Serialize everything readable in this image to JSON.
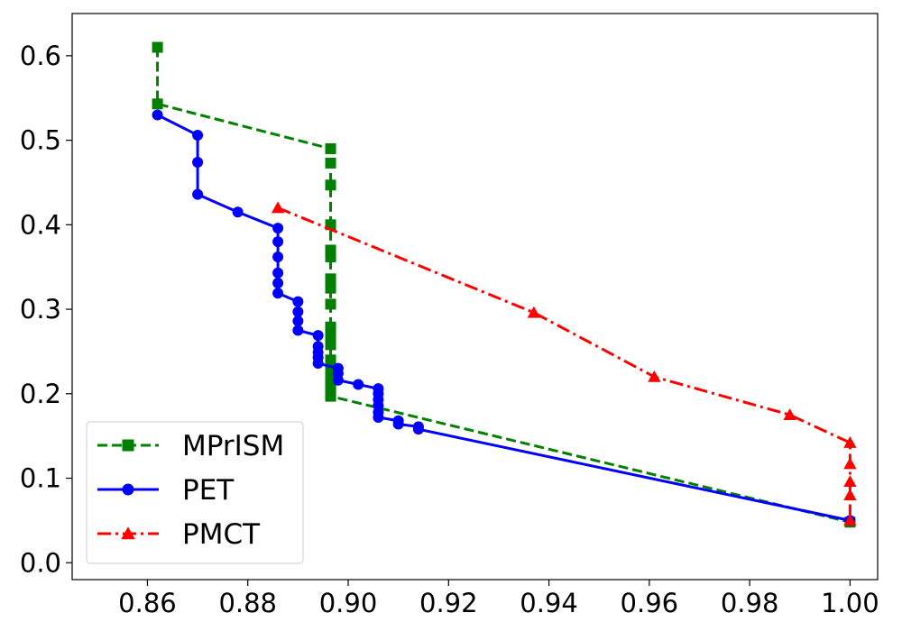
{
  "chart_data": {
    "type": "line",
    "title": "",
    "xlabel": "",
    "ylabel": "",
    "xlim": [
      0.845,
      1.0055
    ],
    "ylim": [
      -0.02,
      0.65
    ],
    "xticks": [
      0.86,
      0.88,
      0.9,
      0.92,
      0.94,
      0.96,
      0.98,
      1.0
    ],
    "xtick_labels": [
      "0.86",
      "0.88",
      "0.90",
      "0.92",
      "0.94",
      "0.96",
      "0.98",
      "1.00"
    ],
    "yticks": [
      0.0,
      0.1,
      0.2,
      0.3,
      0.4,
      0.5,
      0.6
    ],
    "ytick_labels": [
      "0.0",
      "0.1",
      "0.2",
      "0.3",
      "0.4",
      "0.5",
      "0.6"
    ],
    "grid": false,
    "legend_position": "lower-left",
    "series": [
      {
        "name": "MPrISM",
        "color": "#008000",
        "linestyle": "dashed",
        "marker": "square",
        "x": [
          0.862,
          0.862,
          0.8965,
          0.8965,
          0.8965,
          0.8965,
          0.8965,
          0.8965,
          0.8965,
          0.8965,
          0.8965,
          0.8965,
          0.8965,
          0.8965,
          0.8965,
          0.8965,
          0.8965,
          0.8965,
          0.8965,
          0.8965,
          0.8965,
          1.0
        ],
        "y": [
          0.61,
          0.543,
          0.49,
          0.473,
          0.447,
          0.4,
          0.37,
          0.362,
          0.336,
          0.325,
          0.306,
          0.279,
          0.27,
          0.258,
          0.24,
          0.228,
          0.218,
          0.211,
          0.205,
          0.2,
          0.197,
          0.048
        ]
      },
      {
        "name": "PET",
        "color": "#0000ff",
        "linestyle": "solid",
        "marker": "circle",
        "x": [
          0.862,
          0.87,
          0.87,
          0.87,
          0.878,
          0.886,
          0.886,
          0.886,
          0.886,
          0.886,
          0.886,
          0.89,
          0.89,
          0.89,
          0.89,
          0.894,
          0.894,
          0.894,
          0.894,
          0.894,
          0.898,
          0.898,
          0.898,
          0.902,
          0.906,
          0.906,
          0.906,
          0.906,
          0.906,
          0.906,
          0.91,
          0.91,
          0.914,
          0.914,
          1.0
        ],
        "y": [
          0.53,
          0.506,
          0.474,
          0.436,
          0.415,
          0.396,
          0.38,
          0.362,
          0.343,
          0.331,
          0.319,
          0.309,
          0.297,
          0.286,
          0.275,
          0.269,
          0.256,
          0.249,
          0.243,
          0.236,
          0.23,
          0.224,
          0.216,
          0.211,
          0.206,
          0.2,
          0.193,
          0.186,
          0.178,
          0.172,
          0.168,
          0.164,
          0.161,
          0.158,
          0.05
        ]
      },
      {
        "name": "PMCT",
        "color": "#ff0000",
        "linestyle": "dashdot",
        "marker": "triangle",
        "x": [
          0.886,
          0.937,
          0.961,
          0.988,
          1.0,
          1.0,
          1.0,
          1.0,
          1.0
        ],
        "y": [
          0.42,
          0.296,
          0.22,
          0.175,
          0.142,
          0.117,
          0.096,
          0.08,
          0.05
        ]
      }
    ]
  }
}
